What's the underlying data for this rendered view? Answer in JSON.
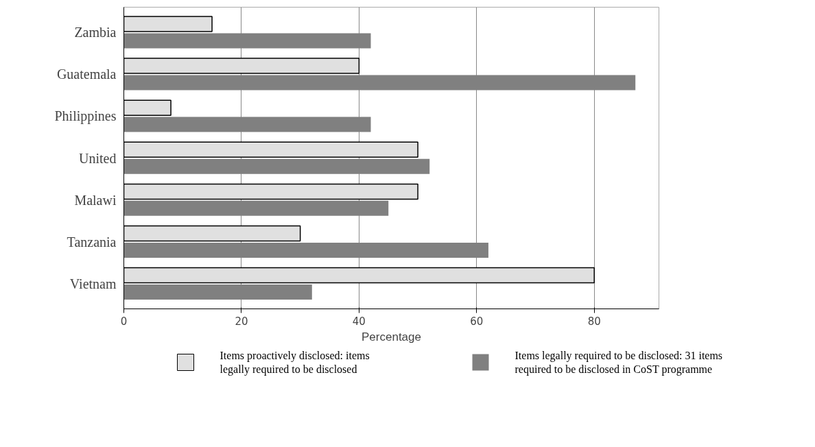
{
  "chart_data": {
    "type": "bar",
    "orientation": "horizontal",
    "xlabel": "Percentage",
    "categories": [
      "Zambia",
      "Guatemala",
      "Philippines",
      "United",
      "Malawi",
      "Tanzania",
      "Vietnam"
    ],
    "series": [
      {
        "name": "Items proactively disclosed: items\nlegally required to be disclosed",
        "color": "#e0e0e0",
        "values": [
          15,
          40,
          8,
          50,
          50,
          30,
          80
        ]
      },
      {
        "name": "Items legally required to be disclosed: 31 items\nrequired to be disclosed in CoST programme",
        "color": "#808080",
        "values": [
          42,
          87,
          42,
          52,
          45,
          62,
          32
        ]
      }
    ],
    "xlim": [
      0,
      91
    ],
    "xticks": [
      0,
      20,
      40,
      60,
      80
    ],
    "grid": "x",
    "legend": "bottom"
  }
}
